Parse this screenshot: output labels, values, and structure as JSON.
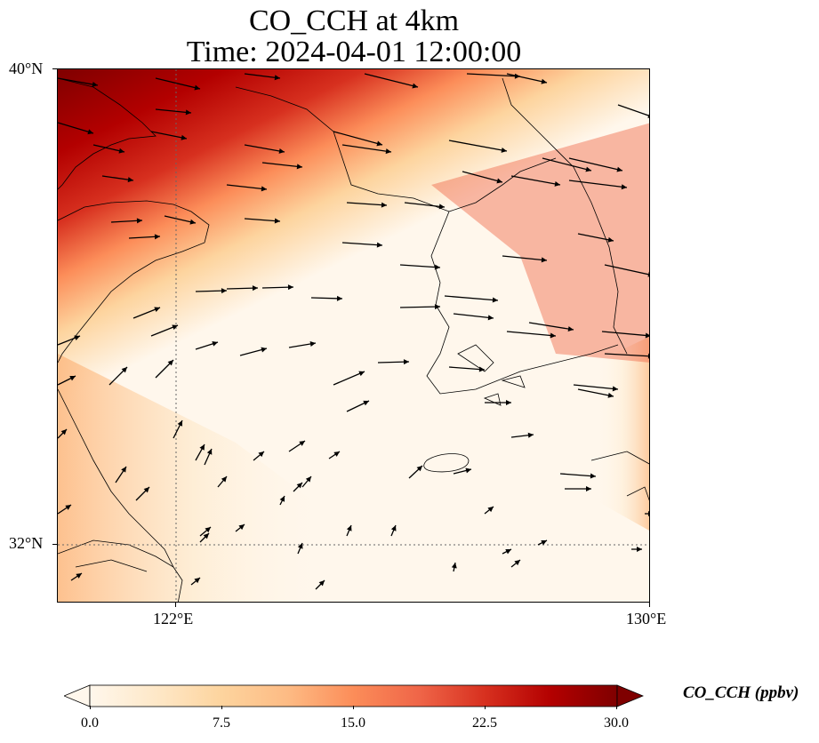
{
  "title": {
    "line1": "CO_CCH at 4km",
    "line2": "Time: 2024-04-01 12:00:00"
  },
  "axes": {
    "lat_labels": [
      "40°N",
      "32°N"
    ],
    "lon_labels": [
      "122°E",
      "130°E"
    ],
    "lat_range": [
      31,
      40
    ],
    "lon_range": [
      120,
      130
    ],
    "gridlines": "dotted"
  },
  "colorbar": {
    "label": "CO_CCH (ppbv)",
    "ticks": [
      "0.0",
      "7.5",
      "15.0",
      "22.5",
      "30.0"
    ],
    "range": [
      0,
      30
    ],
    "colormap": "OrRd",
    "extend": "both",
    "colors": [
      "#fff7ec",
      "#fee8c8",
      "#fdd49e",
      "#fdbb84",
      "#fc8d59",
      "#ef6548",
      "#d7301f",
      "#b30000",
      "#7f0000"
    ]
  },
  "map": {
    "description_field": "CO_CCH",
    "wind_vectors": "black arrows",
    "coastline_color": "#000000"
  }
}
